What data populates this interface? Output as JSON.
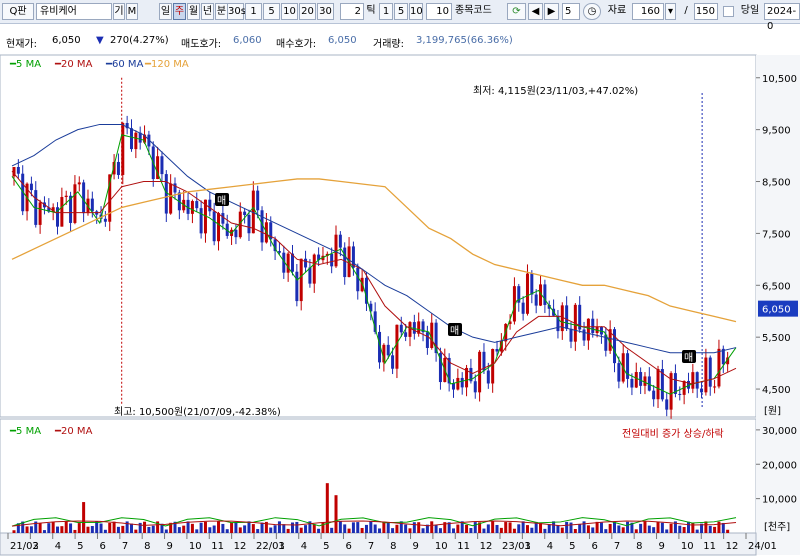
{
  "toolbar": {
    "search_icon": "search-icon",
    "search_label": "Q판",
    "stock_name": "유비케어",
    "gi_label": "기",
    "m_label": "M",
    "periods": [
      "일",
      "주",
      "월",
      "년",
      "분"
    ],
    "selected_period": "주",
    "minute_options": [
      "30s",
      "1",
      "5",
      "10",
      "20",
      "30"
    ],
    "minute_value": "2",
    "tick_label": "틱",
    "tick_options": [
      "1",
      "5",
      "10"
    ],
    "tick_value": "10",
    "code_label": "종목코드",
    "nav_count": "5",
    "data_label": "자료",
    "data_count": "160",
    "slash": "/",
    "total_count": "150",
    "today_label": "당일",
    "date_value": "2024-0"
  },
  "info": {
    "price_label": "현재가:",
    "price": "6,050",
    "change": "270(4.27%)",
    "ask_label": "매도호가:",
    "ask": "6,060",
    "bid_label": "매수호가:",
    "bid": "6,050",
    "volume_label": "거래량:",
    "volume": "3,199,765(66.36%)"
  },
  "price_legend": [
    "5 MA",
    "20 MA",
    "60 MA",
    "120 MA"
  ],
  "volume_legend": [
    "5 MA",
    "20 MA"
  ],
  "volume_caption": "전일대비 증가 상승/하락",
  "annotations": {
    "low": "최저: 4,115원(23/11/03,+47.02%)",
    "high": "최고: 10,500원(21/07/09,-42.38%)",
    "buy_marker": "매"
  },
  "y_axis": {
    "price_ticks": [
      "10,500",
      "9,500",
      "8,500",
      "7,500",
      "6,500",
      "5,500",
      "4,500"
    ],
    "price_unit": "[원]",
    "current_price_tag": "6,050",
    "volume_ticks": [
      "30,000",
      "20,000",
      "10,000"
    ],
    "volume_unit": "[천주]"
  },
  "x_axis": {
    "labels": [
      "21/02",
      "3",
      "4",
      "5",
      "6",
      "7",
      "8",
      "9",
      "10",
      "11",
      "12",
      "22/01",
      "3",
      "4",
      "5",
      "6",
      "7",
      "8",
      "9",
      "10",
      "11",
      "12",
      "23/01",
      "3",
      "4",
      "5",
      "6",
      "7",
      "8",
      "9",
      "10",
      "11",
      "12",
      "24/01"
    ]
  },
  "colors": {
    "up": "#c00000",
    "down": "#1b2db3",
    "ma5": "#00a000",
    "ma20": "#b01010",
    "ma60": "#1a3c9a",
    "ma120": "#e5a23a",
    "price_tag_bg": "#1a3cc0"
  },
  "chart_data": {
    "type": "candlestick",
    "interval": "weekly",
    "y_range": [
      4000,
      10900
    ],
    "volume_range": [
      0,
      32000
    ],
    "volume_unit": "천주",
    "high_point": {
      "date": "21/07/09",
      "price": 10500
    },
    "low_point": {
      "date": "23/11/03",
      "price": 4115
    },
    "current": {
      "price": 6050,
      "change": 270,
      "change_pct": 4.27
    },
    "series": [
      {
        "name": "5 MA",
        "values": [
          8600,
          8000,
          7900,
          8300,
          7700,
          9400,
          9300,
          8300,
          8000,
          7800,
          7500,
          8000,
          7200,
          6600,
          7000,
          7200,
          6500,
          5000,
          5700,
          5600,
          4600,
          4700,
          5000,
          6200,
          6400,
          5800,
          5700,
          5600,
          4800,
          4600,
          4400,
          4600,
          4700,
          5300
        ]
      },
      {
        "name": "20 MA",
        "values": [
          8700,
          8200,
          7900,
          7900,
          7900,
          8400,
          8500,
          8500,
          8300,
          8000,
          7700,
          7600,
          7400,
          7000,
          6900,
          7000,
          6800,
          6100,
          5700,
          5500,
          5000,
          4800,
          5000,
          5600,
          5900,
          5900,
          5700,
          5700,
          5300,
          5000,
          4700,
          4600,
          4700,
          4900
        ]
      },
      {
        "name": "60 MA",
        "values": [
          8800,
          9000,
          9300,
          9500,
          9600,
          9600,
          9400,
          9000,
          8600,
          8300,
          8100,
          7900,
          7700,
          7500,
          7300,
          7100,
          6800,
          6500,
          6300,
          6000,
          5700,
          5500,
          5400,
          5500,
          5600,
          5700,
          5600,
          5500,
          5400,
          5300,
          5200,
          5200,
          5200,
          5300
        ]
      },
      {
        "name": "120 MA",
        "values": [
          7000,
          7200,
          7400,
          7600,
          7800,
          8000,
          8100,
          8200,
          8300,
          8350,
          8400,
          8450,
          8500,
          8550,
          8550,
          8500,
          8450,
          8400,
          8000,
          7600,
          7400,
          7100,
          6900,
          6800,
          6700,
          6600,
          6500,
          6500,
          6400,
          6300,
          6100,
          6000,
          5900,
          5800
        ]
      }
    ]
  }
}
